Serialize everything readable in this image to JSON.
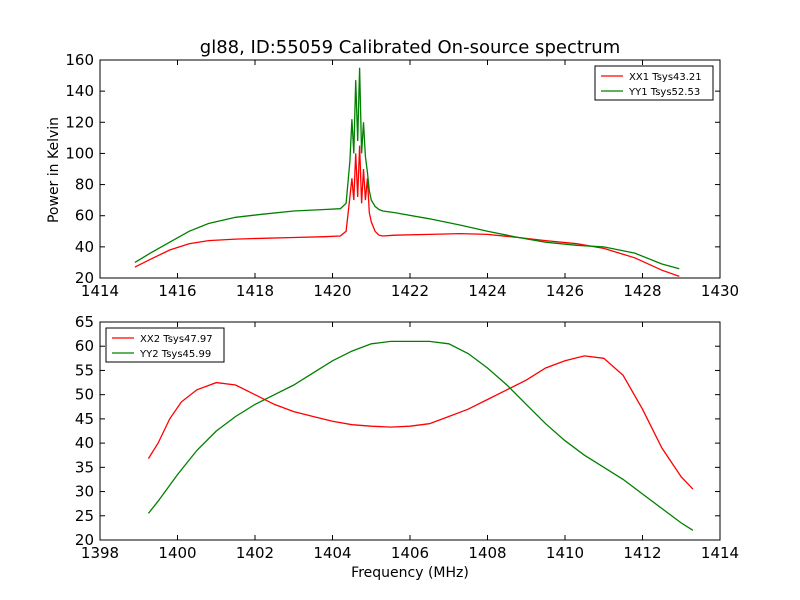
{
  "figure": {
    "title": "gl88, ID:55059 Calibrated On-source spectrum",
    "ylabel": "Power in Kelvin",
    "xlabel": "Frequency (MHz)"
  },
  "chart_data": [
    {
      "type": "line",
      "title": "gl88, ID:55059 Calibrated On-source spectrum",
      "ylabel": "Power in Kelvin",
      "xlabel": "",
      "xlim": [
        1414,
        1430
      ],
      "ylim": [
        20,
        160
      ],
      "xticks": [
        "1414",
        "1416",
        "1418",
        "1420",
        "1422",
        "1424",
        "1426",
        "1428",
        "1430"
      ],
      "yticks": [
        "20",
        "40",
        "60",
        "80",
        "100",
        "120",
        "140",
        "160"
      ],
      "legend": "top-right",
      "grid": false,
      "series": [
        {
          "name": "XX1 Tsys43.21",
          "color": "#ff0000",
          "x": [
            1414.9,
            1415.3,
            1415.8,
            1416.3,
            1416.8,
            1417.5,
            1418.2,
            1419.0,
            1419.8,
            1420.2,
            1420.35,
            1420.45,
            1420.5,
            1420.55,
            1420.6,
            1420.65,
            1420.7,
            1420.75,
            1420.8,
            1420.85,
            1420.9,
            1420.95,
            1421.0,
            1421.1,
            1421.2,
            1421.3,
            1421.6,
            1422.5,
            1423.3,
            1424.0,
            1424.8,
            1425.5,
            1426.3,
            1427.0,
            1427.8,
            1428.5,
            1428.95
          ],
          "y": [
            27,
            32,
            38,
            42,
            44,
            45,
            45.5,
            46,
            46.5,
            47,
            50,
            72,
            84,
            70,
            100,
            72,
            105,
            68,
            90,
            70,
            84,
            62,
            56,
            50,
            47.5,
            47,
            47.5,
            48,
            48.5,
            48,
            46,
            44,
            42,
            39,
            33,
            25,
            21
          ]
        },
        {
          "name": "YY1 Tsys52.53",
          "color": "#008000",
          "x": [
            1414.9,
            1415.3,
            1415.8,
            1416.3,
            1416.8,
            1417.5,
            1418.2,
            1419.0,
            1419.8,
            1420.2,
            1420.35,
            1420.45,
            1420.5,
            1420.55,
            1420.6,
            1420.65,
            1420.7,
            1420.75,
            1420.8,
            1420.85,
            1420.9,
            1420.95,
            1421.0,
            1421.1,
            1421.2,
            1421.3,
            1421.6,
            1422.5,
            1423.3,
            1424.0,
            1424.8,
            1425.5,
            1426.3,
            1427.0,
            1427.8,
            1428.5,
            1428.95
          ],
          "y": [
            30,
            36,
            43,
            50,
            55,
            59,
            61,
            63,
            64,
            64.5,
            68,
            95,
            122,
            100,
            147,
            108,
            155,
            100,
            120,
            98,
            88,
            76,
            70,
            66,
            64,
            63,
            62,
            58,
            54,
            50,
            46,
            43,
            41,
            40,
            36,
            29,
            26
          ]
        }
      ]
    },
    {
      "type": "line",
      "title": "",
      "ylabel": "",
      "xlabel": "Frequency (MHz)",
      "xlim": [
        1398,
        1414
      ],
      "ylim": [
        20,
        65
      ],
      "xticks": [
        "1398",
        "1400",
        "1402",
        "1404",
        "1406",
        "1408",
        "1410",
        "1412",
        "1414"
      ],
      "yticks": [
        "20",
        "25",
        "30",
        "35",
        "40",
        "45",
        "50",
        "55",
        "60",
        "65"
      ],
      "legend": "top-left",
      "grid": false,
      "series": [
        {
          "name": "XX2 Tsys47.97",
          "color": "#ff0000",
          "x": [
            1399.25,
            1399.5,
            1399.8,
            1400.1,
            1400.5,
            1401.0,
            1401.5,
            1402.0,
            1402.5,
            1403.0,
            1403.5,
            1404.0,
            1404.5,
            1405.0,
            1405.5,
            1406.0,
            1406.5,
            1407.0,
            1407.5,
            1408.0,
            1408.5,
            1409.0,
            1409.5,
            1410.0,
            1410.5,
            1411.0,
            1411.5,
            1412.0,
            1412.5,
            1413.0,
            1413.3
          ],
          "y": [
            36.8,
            40,
            45,
            48.5,
            51,
            52.5,
            52,
            50,
            48,
            46.5,
            45.5,
            44.5,
            43.8,
            43.5,
            43.3,
            43.5,
            44,
            45.5,
            47,
            49,
            51,
            53,
            55.5,
            57,
            58,
            57.5,
            54,
            47,
            39,
            33,
            30.5
          ]
        },
        {
          "name": "YY2 Tsys45.99",
          "color": "#008000",
          "x": [
            1399.25,
            1399.5,
            1400.0,
            1400.5,
            1401.0,
            1401.5,
            1402.0,
            1402.5,
            1403.0,
            1403.5,
            1404.0,
            1404.5,
            1405.0,
            1405.5,
            1406.0,
            1406.5,
            1407.0,
            1407.5,
            1408.0,
            1408.5,
            1409.0,
            1409.5,
            1410.0,
            1410.5,
            1411.0,
            1411.5,
            1412.0,
            1412.5,
            1413.0,
            1413.3
          ],
          "y": [
            25.5,
            28,
            33.5,
            38.5,
            42.5,
            45.5,
            48,
            50,
            52,
            54.5,
            57,
            59,
            60.5,
            61,
            61,
            61,
            60.5,
            58.5,
            55.5,
            52,
            48,
            44,
            40.5,
            37.5,
            35,
            32.5,
            29.5,
            26.5,
            23.5,
            22
          ]
        }
      ]
    }
  ]
}
